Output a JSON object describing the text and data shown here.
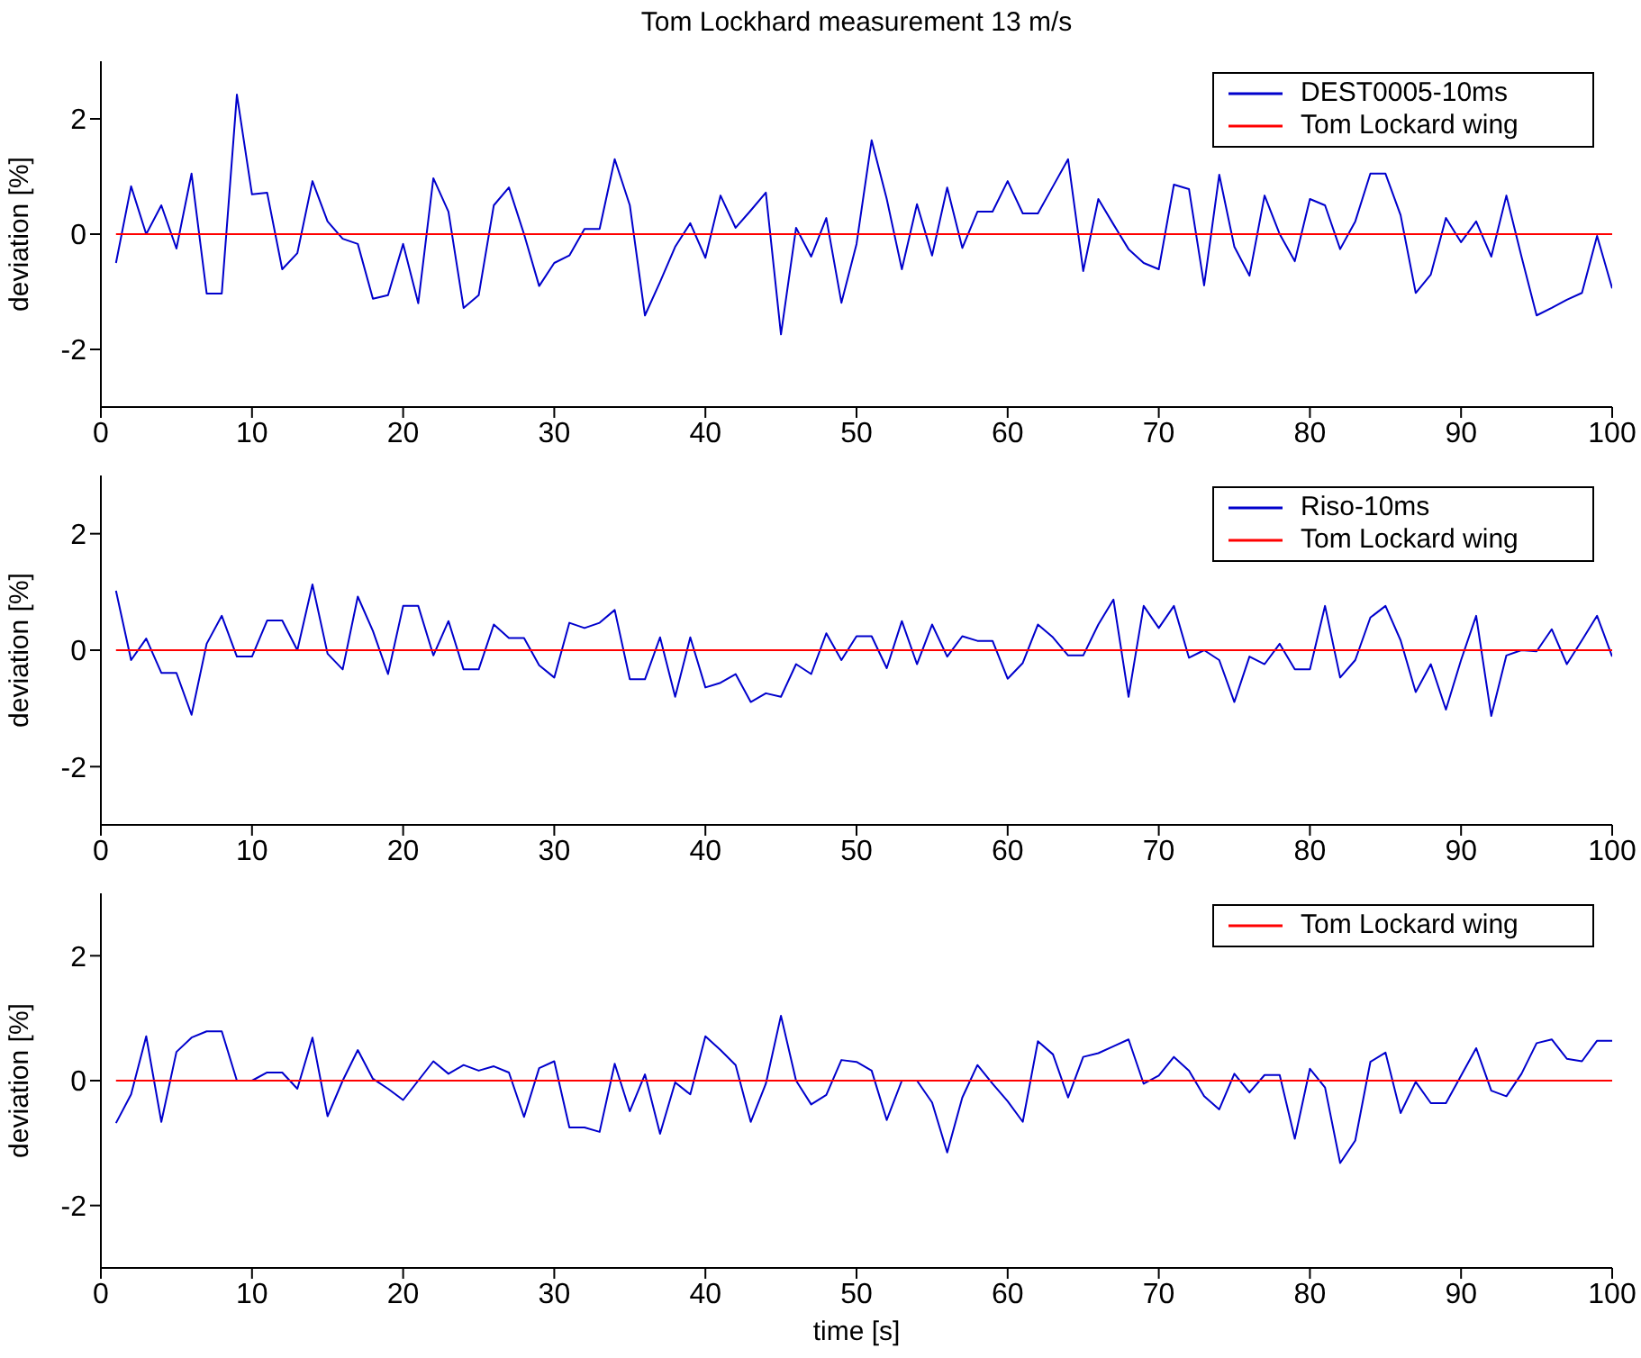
{
  "chart_data": [
    {
      "type": "line",
      "title": "Tom Lockhard measurement 13 m/s",
      "ylabel": "deviation [%]",
      "xlim": [
        0,
        100
      ],
      "xticks": [
        0,
        10,
        20,
        30,
        40,
        50,
        60,
        70,
        80,
        90,
        100
      ],
      "ylim": [
        -3,
        3
      ],
      "yticks": [
        -2,
        0,
        2
      ],
      "legend": "top right",
      "x": [
        1,
        2,
        3,
        4,
        5,
        6,
        7,
        8,
        9,
        10,
        11,
        12,
        13,
        14,
        15,
        16,
        17,
        18,
        19,
        20,
        21,
        22,
        23,
        24,
        25,
        26,
        27,
        28,
        29,
        30,
        31,
        32,
        33,
        34,
        35,
        36,
        37,
        38,
        39,
        40,
        41,
        42,
        43,
        44,
        45,
        46,
        47,
        48,
        49,
        50,
        51,
        52,
        53,
        54,
        55,
        56,
        57,
        58,
        59,
        60,
        61,
        62,
        63,
        64,
        65,
        66,
        67,
        68,
        69,
        70,
        71,
        72,
        73,
        74,
        75,
        76,
        77,
        78,
        79,
        80,
        81,
        82,
        83,
        84,
        85,
        86,
        87,
        88,
        89,
        90,
        91,
        92,
        93,
        94,
        95,
        96,
        97,
        98,
        99,
        100
      ],
      "series": [
        {
          "name": "DEST0005-10ms",
          "color": "#0000cc",
          "values": [
            -0.5,
            0.83,
            0,
            0.5,
            -0.25,
            1.05,
            -1.03,
            -1.03,
            2.42,
            0.69,
            0.72,
            -0.61,
            -0.33,
            0.92,
            0.22,
            -0.08,
            -0.17,
            -1.12,
            -1.06,
            -0.17,
            -1.2,
            0.97,
            0.39,
            -1.28,
            -1.06,
            0.5,
            0.81,
            0,
            -0.9,
            -0.5,
            -0.37,
            0.09,
            0.09,
            1.3,
            0.5,
            -1.41,
            -0.83,
            -0.22,
            0.19,
            -0.41,
            0.67,
            0.11,
            0.41,
            0.72,
            -1.74,
            0.11,
            -0.39,
            0.28,
            -1.19,
            -0.17,
            1.63,
            0.61,
            -0.61,
            0.52,
            -0.37,
            0.81,
            -0.24,
            0.39,
            0.39,
            0.92,
            0.36,
            0.36,
            0.83,
            1.3,
            -0.64,
            0.61,
            0.17,
            -0.26,
            -0.5,
            -0.61,
            0.86,
            0.78,
            -0.89,
            1.03,
            -0.22,
            -0.72,
            0.67,
            0,
            -0.47,
            0.61,
            0.5,
            -0.26,
            0.22,
            1.05,
            1.05,
            0.33,
            -1.02,
            -0.7,
            0.28,
            -0.14,
            0.22,
            -0.39,
            0.67,
            -0.39,
            -1.41,
            -1.28,
            -1.14,
            -1.02,
            -0.03,
            -0.94
          ]
        },
        {
          "name": "Tom Lockard wing",
          "color": "#ff0000",
          "values": [
            0,
            0,
            0,
            0,
            0,
            0,
            0,
            0,
            0,
            0,
            0,
            0,
            0,
            0,
            0,
            0,
            0,
            0,
            0,
            0,
            0,
            0,
            0,
            0,
            0,
            0,
            0,
            0,
            0,
            0,
            0,
            0,
            0,
            0,
            0,
            0,
            0,
            0,
            0,
            0,
            0,
            0,
            0,
            0,
            0,
            0,
            0,
            0,
            0,
            0,
            0,
            0,
            0,
            0,
            0,
            0,
            0,
            0,
            0,
            0,
            0,
            0,
            0,
            0,
            0,
            0,
            0,
            0,
            0,
            0,
            0,
            0,
            0,
            0,
            0,
            0,
            0,
            0,
            0,
            0,
            0,
            0,
            0,
            0,
            0,
            0,
            0,
            0,
            0,
            0,
            0,
            0,
            0,
            0,
            0,
            0,
            0,
            0,
            0,
            0
          ]
        }
      ]
    },
    {
      "type": "line",
      "ylabel": "deviation [%]",
      "xlim": [
        0,
        100
      ],
      "xticks": [
        0,
        10,
        20,
        30,
        40,
        50,
        60,
        70,
        80,
        90,
        100
      ],
      "ylim": [
        -3,
        3
      ],
      "yticks": [
        -2,
        0,
        2
      ],
      "legend": "top right",
      "x": [
        1,
        2,
        3,
        4,
        5,
        6,
        7,
        8,
        9,
        10,
        11,
        12,
        13,
        14,
        15,
        16,
        17,
        18,
        19,
        20,
        21,
        22,
        23,
        24,
        25,
        26,
        27,
        28,
        29,
        30,
        31,
        32,
        33,
        34,
        35,
        36,
        37,
        38,
        39,
        40,
        41,
        42,
        43,
        44,
        45,
        46,
        47,
        48,
        49,
        50,
        51,
        52,
        53,
        54,
        55,
        56,
        57,
        58,
        59,
        60,
        61,
        62,
        63,
        64,
        65,
        66,
        67,
        68,
        69,
        70,
        71,
        72,
        73,
        74,
        75,
        76,
        77,
        78,
        79,
        80,
        81,
        82,
        83,
        84,
        85,
        86,
        87,
        88,
        89,
        90,
        91,
        92,
        93,
        94,
        95,
        96,
        97,
        98,
        99,
        100
      ],
      "series": [
        {
          "name": "Riso-10ms",
          "color": "#0000cc",
          "values": [
            1.02,
            -0.17,
            0.2,
            -0.39,
            -0.39,
            -1.11,
            0.11,
            0.59,
            -0.11,
            -0.11,
            0.51,
            0.51,
            0,
            1.13,
            -0.06,
            -0.33,
            0.92,
            0.33,
            -0.41,
            0.76,
            0.76,
            -0.09,
            0.5,
            -0.33,
            -0.33,
            0.44,
            0.21,
            0.21,
            -0.26,
            -0.47,
            0.47,
            0.38,
            0.47,
            0.69,
            -0.5,
            -0.5,
            0.22,
            -0.8,
            0.22,
            -0.64,
            -0.56,
            -0.41,
            -0.89,
            -0.74,
            -0.8,
            -0.24,
            -0.41,
            0.29,
            -0.17,
            0.24,
            0.24,
            -0.31,
            0.5,
            -0.24,
            0.44,
            -0.11,
            0.24,
            0.16,
            0.16,
            -0.49,
            -0.22,
            0.44,
            0.22,
            -0.09,
            -0.09,
            0.44,
            0.87,
            -0.8,
            0.76,
            0.38,
            0.76,
            -0.13,
            0,
            -0.17,
            -0.89,
            -0.11,
            -0.24,
            0.11,
            -0.33,
            -0.33,
            0.76,
            -0.47,
            -0.17,
            0.56,
            0.76,
            0.17,
            -0.72,
            -0.24,
            -1.02,
            -0.17,
            0.59,
            -1.13,
            -0.09,
            0,
            -0.02,
            0.36,
            -0.24,
            0.17,
            0.59,
            -0.11
          ]
        },
        {
          "name": "Tom Lockard wing",
          "color": "#ff0000",
          "values": [
            0,
            0,
            0,
            0,
            0,
            0,
            0,
            0,
            0,
            0,
            0,
            0,
            0,
            0,
            0,
            0,
            0,
            0,
            0,
            0,
            0,
            0,
            0,
            0,
            0,
            0,
            0,
            0,
            0,
            0,
            0,
            0,
            0,
            0,
            0,
            0,
            0,
            0,
            0,
            0,
            0,
            0,
            0,
            0,
            0,
            0,
            0,
            0,
            0,
            0,
            0,
            0,
            0,
            0,
            0,
            0,
            0,
            0,
            0,
            0,
            0,
            0,
            0,
            0,
            0,
            0,
            0,
            0,
            0,
            0,
            0,
            0,
            0,
            0,
            0,
            0,
            0,
            0,
            0,
            0,
            0,
            0,
            0,
            0,
            0,
            0,
            0,
            0,
            0,
            0,
            0,
            0,
            0,
            0,
            0,
            0,
            0,
            0,
            0,
            0
          ]
        }
      ]
    },
    {
      "type": "line",
      "ylabel": "deviation [%]",
      "xlabel": "time [s]",
      "xlim": [
        0,
        100
      ],
      "xticks": [
        0,
        10,
        20,
        30,
        40,
        50,
        60,
        70,
        80,
        90,
        100
      ],
      "ylim": [
        -3,
        3
      ],
      "yticks": [
        -2,
        0,
        2
      ],
      "legend": "top right",
      "x": [
        1,
        2,
        3,
        4,
        5,
        6,
        7,
        8,
        9,
        10,
        11,
        12,
        13,
        14,
        15,
        16,
        17,
        18,
        19,
        20,
        21,
        22,
        23,
        24,
        25,
        26,
        27,
        28,
        29,
        30,
        31,
        32,
        33,
        34,
        35,
        36,
        37,
        38,
        39,
        40,
        41,
        42,
        43,
        44,
        45,
        46,
        47,
        48,
        49,
        50,
        51,
        52,
        53,
        54,
        55,
        56,
        57,
        58,
        59,
        60,
        61,
        62,
        63,
        64,
        65,
        66,
        67,
        68,
        69,
        70,
        71,
        72,
        73,
        74,
        75,
        76,
        77,
        78,
        79,
        80,
        81,
        82,
        83,
        84,
        85,
        86,
        87,
        88,
        89,
        90,
        91,
        92,
        93,
        94,
        95,
        96,
        97,
        98,
        99,
        100
      ],
      "series": [
        {
          "color": "#0000cc",
          "values": [
            -0.68,
            -0.22,
            0.71,
            -0.66,
            0.46,
            0.69,
            0.79,
            0.79,
            0,
            0,
            0.13,
            0.13,
            -0.13,
            0.69,
            -0.57,
            0,
            0.49,
            0.03,
            -0.13,
            -0.31,
            0,
            0.31,
            0.11,
            0.25,
            0.16,
            0.23,
            0.13,
            -0.58,
            0.2,
            0.31,
            -0.75,
            -0.75,
            -0.82,
            0.27,
            -0.49,
            0.1,
            -0.85,
            -0.03,
            -0.22,
            0.71,
            0.49,
            0.25,
            -0.66,
            -0.05,
            1.04,
            0,
            -0.38,
            -0.23,
            0.33,
            0.3,
            0.16,
            -0.63,
            0,
            0,
            -0.35,
            -1.15,
            -0.27,
            0.25,
            -0.05,
            -0.33,
            -0.66,
            0.63,
            0.42,
            -0.27,
            0.38,
            0.44,
            0.55,
            0.66,
            -0.05,
            0.08,
            0.38,
            0.16,
            -0.25,
            -0.46,
            0.11,
            -0.19,
            0.09,
            0.09,
            -0.93,
            0.19,
            -0.11,
            -1.32,
            -0.96,
            0.3,
            0.45,
            -0.52,
            -0.02,
            -0.36,
            -0.36,
            0.08,
            0.52,
            -0.16,
            -0.25,
            0.11,
            0.6,
            0.66,
            0.35,
            0.31,
            0.64,
            0.64
          ]
        },
        {
          "name": "Tom Lockard wing",
          "color": "#ff0000",
          "values": [
            0,
            0,
            0,
            0,
            0,
            0,
            0,
            0,
            0,
            0,
            0,
            0,
            0,
            0,
            0,
            0,
            0,
            0,
            0,
            0,
            0,
            0,
            0,
            0,
            0,
            0,
            0,
            0,
            0,
            0,
            0,
            0,
            0,
            0,
            0,
            0,
            0,
            0,
            0,
            0,
            0,
            0,
            0,
            0,
            0,
            0,
            0,
            0,
            0,
            0,
            0,
            0,
            0,
            0,
            0,
            0,
            0,
            0,
            0,
            0,
            0,
            0,
            0,
            0,
            0,
            0,
            0,
            0,
            0,
            0,
            0,
            0,
            0,
            0,
            0,
            0,
            0,
            0,
            0,
            0,
            0,
            0,
            0,
            0,
            0,
            0,
            0,
            0,
            0,
            0,
            0,
            0,
            0,
            0,
            0,
            0,
            0,
            0,
            0,
            0
          ]
        }
      ]
    }
  ]
}
